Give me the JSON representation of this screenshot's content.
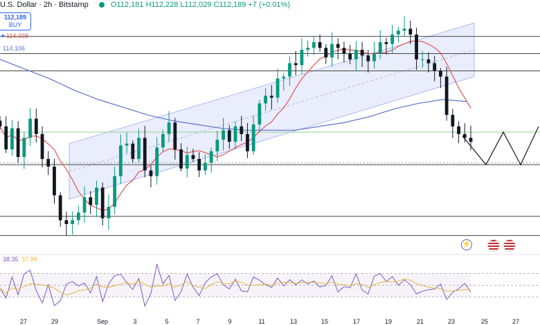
{
  "header": {
    "symbol": "U.S. Dollar · 2h · Bitstamp",
    "ohlc": "O112,181  H112,228  L112,029  C112,189  +7 (+0.01%)"
  },
  "price_tags": {
    "buy_price": "112,189",
    "buy_label": "BUY",
    "red_level": "114,338",
    "blue_level": "114,106"
  },
  "rsi": {
    "value1": "38.35",
    "value2": "37.99"
  },
  "colors": {
    "up": "#089981",
    "candle": "#131722",
    "ma_red": "#e05555",
    "ma_blue": "#5b73c9",
    "channel": "#aab8f0",
    "rsi": "#7e57c2",
    "rsi_ma": "#e7b83a",
    "hline": "#444444",
    "green_line": "#9fd39f"
  },
  "icons": [
    "lightning-icon",
    "us-flag-icon",
    "us-flag-icon"
  ],
  "chart_data": {
    "type": "candlestick",
    "price_ylim": [
      106500,
      119500
    ],
    "horizontal_levels": [
      117600,
      116700,
      115800,
      112600,
      111000,
      110900,
      108200,
      107200
    ],
    "x_ticks": [
      "27",
      "29",
      "Sep",
      "3",
      "5",
      "7",
      "9",
      "11",
      "13",
      "15",
      "17",
      "19",
      "21",
      "23",
      "25",
      "27"
    ],
    "close_path": [
      112900,
      111700,
      112800,
      111300,
      112300,
      113300,
      112500,
      111200,
      110800,
      109300,
      108000,
      107800,
      108000,
      108400,
      109200,
      108800,
      109700,
      108100,
      108700,
      110300,
      111900,
      112000,
      111200,
      112300,
      110600,
      110300,
      111800,
      112500,
      113100,
      111700,
      110700,
      111400,
      111200,
      110600,
      111000,
      111600,
      112200,
      112700,
      112100,
      112900,
      112500,
      111600,
      113000,
      114100,
      114500,
      114400,
      115400,
      115500,
      116200,
      116100,
      116900,
      117000,
      117300,
      117000,
      116500,
      117200,
      117000,
      116700,
      116400,
      116900,
      116600,
      116300,
      116700,
      117300,
      117200,
      117700,
      117900,
      118000,
      117700,
      116400,
      116400,
      116200,
      115800,
      115500,
      113500,
      112900,
      112500,
      112300,
      112100
    ],
    "projection": [
      [
        112400,
        112400
      ],
      [
        114000,
        111400
      ],
      [
        115600,
        112100
      ],
      [
        117000,
        114000
      ]
    ],
    "channel": {
      "upper": [
        112000,
        118300
      ],
      "lower": [
        109100,
        115500
      ]
    },
    "rsi_levels": [
      70,
      50,
      30
    ],
    "rsi_current": [
      38.35,
      37.99
    ]
  }
}
